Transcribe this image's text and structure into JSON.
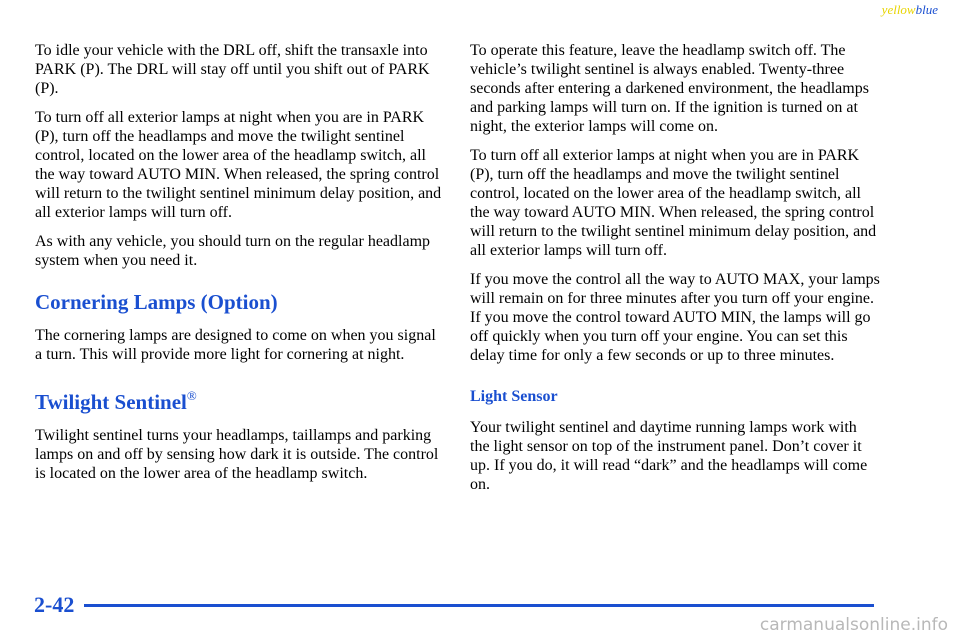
{
  "header": {
    "yellow": "yellow",
    "blue": "blue"
  },
  "left": {
    "p1": "To idle your vehicle with the DRL off, shift the transaxle into PARK (P). The DRL will stay off until you shift out of PARK (P).",
    "p2": "To turn off all exterior lamps at night when you are in PARK (P), turn off the headlamps and move the twilight sentinel control, located on the lower area of the headlamp switch, all the way toward AUTO MIN. When released, the spring control will return to the twilight sentinel minimum delay position, and all exterior lamps will turn off.",
    "p3": "As with any vehicle, you should turn on the regular headlamp system when you need it.",
    "heading1": "Cornering Lamps (Option)",
    "p4": "The cornering lamps are designed to come on when you signal a turn. This will provide more light for cornering at night.",
    "heading2": "Twilight Sentinel",
    "heading2_mark": "®",
    "p5": "Twilight sentinel turns your headlamps, taillamps and parking lamps on and off by sensing how dark it is outside. The control is located on the lower area of the headlamp switch."
  },
  "right": {
    "p1": "To operate this feature, leave the headlamp switch off. The vehicle’s twilight sentinel is always enabled. Twenty-three seconds after entering a darkened environment, the headlamps and parking lamps will turn on. If the ignition is turned on at night, the exterior lamps will come on.",
    "p2": "To turn off all exterior lamps at night when you are in PARK (P), turn off the headlamps and move the twilight sentinel control, located on the lower area of the headlamp switch, all the way toward AUTO MIN. When released, the spring control will return to the twilight sentinel minimum delay position, and all exterior lamps will turn off.",
    "p3": "If you move the control all the way to AUTO MAX, your lamps will remain on for three minutes after you turn off your engine. If you move the control toward AUTO MIN, the lamps will go off quickly when you turn off your engine. You can set this delay time for only a few seconds or up to three minutes.",
    "subheading": "Light Sensor",
    "p4": "Your twilight sentinel and daytime running lamps work with the light sensor on top of the instrument panel. Don’t cover it up. If you do, it will read “dark” and the headlamps will come on."
  },
  "footer": {
    "page": "2-42",
    "watermark": "carmanualsonline.info"
  }
}
